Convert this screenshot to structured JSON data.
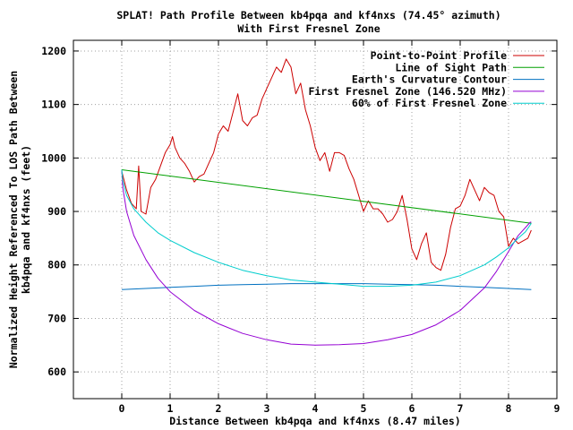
{
  "chart_data": {
    "type": "line",
    "title": "SPLAT! Path Profile Between kb4pqa and kf4nxs (74.45° azimuth)",
    "subtitle": "With First Fresnel Zone",
    "xlabel": "Distance Between kb4pqa and kf4nxs (8.47 miles)",
    "ylabel_line1": "Normalized Height Referenced To LOS Path Between",
    "ylabel_line2": "kb4pqa and kf4nxs (feet)",
    "xlim": [
      -1,
      9
    ],
    "ylim": [
      550,
      1220
    ],
    "x_ticks": [
      "0",
      "1",
      "2",
      "3",
      "4",
      "5",
      "6",
      "7",
      "8",
      "9"
    ],
    "y_ticks": [
      "600",
      "700",
      "800",
      "900",
      "1000",
      "1100",
      "1200"
    ],
    "grid": true,
    "legend_position": "top-right",
    "series": [
      {
        "name": "Point-to-Point Profile",
        "color": "#cc0000",
        "x": [
          0.0,
          0.1,
          0.2,
          0.3,
          0.35,
          0.4,
          0.5,
          0.6,
          0.7,
          0.8,
          0.9,
          1.0,
          1.05,
          1.1,
          1.2,
          1.3,
          1.4,
          1.5,
          1.6,
          1.7,
          1.8,
          1.9,
          2.0,
          2.1,
          2.2,
          2.3,
          2.4,
          2.5,
          2.6,
          2.7,
          2.8,
          2.9,
          3.0,
          3.1,
          3.2,
          3.3,
          3.4,
          3.5,
          3.6,
          3.7,
          3.8,
          3.9,
          4.0,
          4.1,
          4.2,
          4.3,
          4.4,
          4.5,
          4.6,
          4.7,
          4.8,
          4.9,
          5.0,
          5.1,
          5.2,
          5.3,
          5.4,
          5.5,
          5.6,
          5.7,
          5.8,
          5.9,
          6.0,
          6.1,
          6.2,
          6.3,
          6.4,
          6.5,
          6.6,
          6.7,
          6.8,
          6.9,
          7.0,
          7.1,
          7.2,
          7.3,
          7.4,
          7.5,
          7.6,
          7.7,
          7.8,
          7.9,
          8.0,
          8.1,
          8.2,
          8.3,
          8.4,
          8.47
        ],
        "values": [
          975,
          940,
          915,
          905,
          985,
          900,
          895,
          945,
          960,
          985,
          1010,
          1025,
          1040,
          1020,
          1000,
          990,
          975,
          955,
          965,
          970,
          990,
          1010,
          1045,
          1060,
          1050,
          1085,
          1120,
          1070,
          1060,
          1075,
          1080,
          1110,
          1130,
          1150,
          1170,
          1160,
          1185,
          1170,
          1120,
          1140,
          1090,
          1060,
          1020,
          995,
          1010,
          975,
          1010,
          1010,
          1005,
          980,
          960,
          930,
          900,
          920,
          905,
          905,
          895,
          880,
          885,
          900,
          930,
          885,
          830,
          810,
          840,
          860,
          805,
          795,
          790,
          820,
          870,
          905,
          910,
          930,
          960,
          940,
          920,
          945,
          935,
          930,
          900,
          890,
          835,
          850,
          840,
          845,
          850,
          865
        ]
      },
      {
        "name": "Line of Sight Path",
        "color": "#00a000",
        "x": [
          0,
          8.47
        ],
        "values": [
          978,
          878
        ]
      },
      {
        "name": "Earth's Curvature Contour",
        "color": "#0070c0",
        "x": [
          0.0,
          0.5,
          1.0,
          1.5,
          2.0,
          2.5,
          3.0,
          3.5,
          4.0,
          4.235,
          4.5,
          5.0,
          5.5,
          6.0,
          6.5,
          7.0,
          7.5,
          8.0,
          8.47
        ],
        "values": [
          754,
          756,
          758,
          760,
          762,
          763,
          764,
          765,
          765,
          765,
          765,
          765,
          764,
          763,
          762,
          760,
          758,
          756,
          754
        ]
      },
      {
        "name": "First Fresnel Zone (146.520 MHz)",
        "color": "#9400d3",
        "x": [
          0.0,
          0.02,
          0.1,
          0.25,
          0.5,
          0.75,
          1.0,
          1.5,
          2.0,
          2.5,
          3.0,
          3.5,
          4.0,
          4.5,
          5.0,
          5.5,
          6.0,
          6.5,
          7.0,
          7.5,
          7.75,
          8.0,
          8.2,
          8.35,
          8.45,
          8.47
        ],
        "values": [
          978,
          945,
          900,
          855,
          810,
          775,
          750,
          715,
          690,
          672,
          660,
          652,
          650,
          651,
          653,
          660,
          670,
          688,
          715,
          757,
          788,
          825,
          855,
          870,
          880,
          880
        ]
      },
      {
        "name": "60% of First Fresnel Zone",
        "color": "#00cdcd",
        "x": [
          0.0,
          0.02,
          0.1,
          0.25,
          0.5,
          0.75,
          1.0,
          1.5,
          2.0,
          2.5,
          3.0,
          3.5,
          4.0,
          4.5,
          5.0,
          5.5,
          6.0,
          6.5,
          7.0,
          7.5,
          7.75,
          8.0,
          8.2,
          8.35,
          8.45,
          8.47
        ],
        "values": [
          978,
          958,
          930,
          905,
          880,
          860,
          846,
          823,
          805,
          790,
          780,
          772,
          768,
          764,
          760,
          760,
          762,
          768,
          780,
          800,
          815,
          832,
          850,
          862,
          875,
          878
        ]
      }
    ]
  }
}
